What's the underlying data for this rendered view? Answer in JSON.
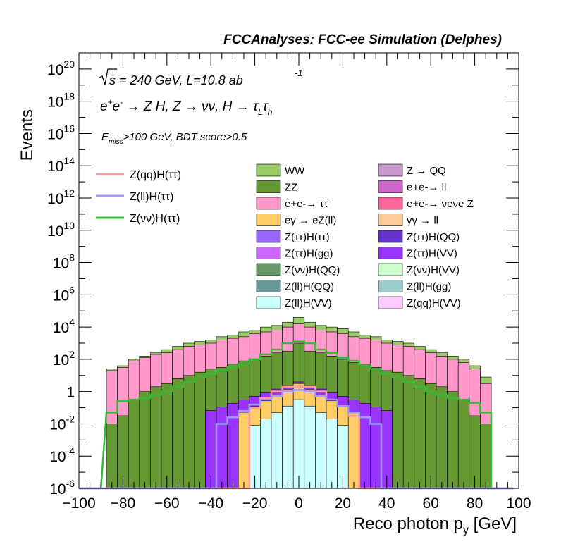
{
  "chart_data": {
    "type": "histogram-stacked",
    "title": "FCCAnalyses: FCC-ee Simulation (Delphes)",
    "xlabel": "Reco photon p_{y} [GeV]",
    "ylabel": "Events",
    "xlim": [
      -100,
      100
    ],
    "ylim": [
      1e-06,
      1e+21
    ],
    "yscale": "log",
    "annotations": {
      "energy": "√s = 240 GeV, L=10.8 ab",
      "energy_sup": "-1",
      "process": "e+e- → Z H, Z → νν, H → τLτh",
      "cuts": "E_miss>100 GeV, BDT score>0.5"
    },
    "xticks": [
      "−100",
      "−80",
      "−60",
      "−40",
      "−20",
      "0",
      "20",
      "40",
      "60",
      "80",
      "100"
    ],
    "yticks": [
      "10^-6",
      "10^-4",
      "10^-2",
      "1",
      "10^2",
      "10^4",
      "10^6",
      "10^8",
      "10^10",
      "10^12",
      "10^14",
      "10^16",
      "10^18",
      "10^20"
    ],
    "signal_legend": [
      {
        "name": "Z(qq)H(ττ)",
        "color": "#ff9999"
      },
      {
        "name": "Z(ll)H(ττ)",
        "color": "#9999ff"
      },
      {
        "name": "Z(νν)H(ττ)",
        "color": "#33bb33"
      }
    ],
    "bkg_legend": [
      {
        "name": "WW",
        "color": "#99cc66"
      },
      {
        "name": "Z → QQ",
        "color": "#cc99cc"
      },
      {
        "name": "ZZ",
        "color": "#669933"
      },
      {
        "name": "e+e-→ ll",
        "color": "#cc66cc"
      },
      {
        "name": "e+e-→ ττ",
        "color": "#ff99cc"
      },
      {
        "name": "e+e-→ νeνe Z",
        "color": "#ff6699"
      },
      {
        "name": "eγ → eZ(ll)",
        "color": "#ffcc66"
      },
      {
        "name": "γγ → ll",
        "color": "#ffcc99"
      },
      {
        "name": "Z(ττ)H(ττ)",
        "color": "#9966ff"
      },
      {
        "name": "Z(ττ)H(QQ)",
        "color": "#6633cc"
      },
      {
        "name": "Z(ττ)H(gg)",
        "color": "#cc66ff"
      },
      {
        "name": "Z(ττ)H(VV)",
        "color": "#9933ff"
      },
      {
        "name": "Z(νν)H(QQ)",
        "color": "#669966"
      },
      {
        "name": "Z(νν)H(VV)",
        "color": "#ccffcc"
      },
      {
        "name": "Z(ll)H(QQ)",
        "color": "#669999"
      },
      {
        "name": "Z(ll)H(gg)",
        "color": "#99cccc"
      },
      {
        "name": "Z(ll)H(VV)",
        "color": "#ccffff"
      },
      {
        "name": "Z(qq)H(VV)",
        "color": "#ffccff"
      }
    ],
    "bins": [
      -95,
      -85,
      -80,
      -75,
      -70,
      -65,
      -60,
      -55,
      -50,
      -45,
      -40,
      -35,
      -30,
      -25,
      -20,
      -15,
      -10,
      -5,
      0,
      5,
      10,
      15,
      20,
      25,
      30,
      35,
      40,
      45,
      50,
      55,
      60,
      65,
      70,
      75,
      80,
      85,
      90,
      95
    ],
    "stack_tops_log10": {
      "total": [
        -6,
        1.4,
        1.6,
        2.0,
        2.2,
        2.4,
        2.6,
        2.8,
        3.0,
        3.1,
        3.2,
        3.4,
        3.5,
        3.7,
        3.8,
        4.0,
        4.1,
        4.3,
        4.6,
        4.3,
        4.1,
        4.0,
        3.9,
        3.7,
        3.5,
        3.4,
        3.2,
        3.1,
        3.0,
        2.8,
        2.6,
        2.4,
        2.2,
        2.0,
        1.6,
        0.9,
        -6,
        -6
      ],
      "ll_ee_tautau_base": [
        -6,
        1.3,
        1.5,
        1.9,
        2.1,
        2.3,
        2.4,
        2.6,
        2.8,
        2.9,
        3.0,
        3.2,
        3.3,
        3.4,
        3.6,
        3.7,
        3.8,
        4.0,
        4.2,
        4.0,
        3.8,
        3.7,
        3.6,
        3.4,
        3.3,
        3.2,
        3.0,
        2.9,
        2.8,
        2.6,
        2.4,
        2.2,
        2.0,
        1.8,
        1.4,
        0.5,
        -6,
        -6
      ],
      "zz": [
        -6,
        -2,
        -1.5,
        -0.5,
        0,
        0.3,
        0.5,
        0.8,
        1.0,
        1.2,
        1.4,
        1.5,
        1.7,
        1.9,
        2.0,
        2.2,
        2.4,
        2.5,
        3.0,
        2.5,
        2.4,
        2.2,
        2.0,
        1.8,
        1.7,
        1.5,
        1.3,
        1.2,
        1.0,
        0.8,
        0.5,
        0.3,
        0,
        -0.5,
        -1.5,
        -2,
        -6,
        -6
      ]
    },
    "signal_vv_log10": [
      -6,
      -1.3,
      -0.6,
      -0.5,
      -0.4,
      -0.2,
      0.0,
      0.3,
      0.6,
      0.9,
      1.1,
      1.3,
      1.5,
      1.7,
      2.0,
      2.3,
      2.6,
      3.0,
      3.1,
      3.0,
      2.6,
      2.4,
      2.1,
      1.9,
      1.6,
      1.4,
      1.1,
      0.9,
      0.6,
      0.3,
      0.0,
      -0.2,
      -0.4,
      -0.5,
      -0.7,
      -1.3,
      -6,
      -6
    ],
    "signal_qq_log10": [
      -6,
      -6,
      -6,
      -6,
      -6,
      -6,
      -6,
      -6,
      -6,
      -6,
      -6,
      -6,
      -6,
      -6,
      -1.0,
      -0.4,
      0.0,
      0.3,
      0.3,
      0.3,
      0.0,
      -0.5,
      -0.9,
      -1.5,
      -6,
      -6,
      -6,
      -6,
      -6,
      -6,
      -6,
      -6,
      -6,
      -6,
      -6,
      -6,
      -6,
      -6
    ],
    "signal_ll_log10": [
      -6,
      -6,
      -6,
      -6,
      -6,
      -6,
      -6,
      -6,
      -6,
      -6,
      -6,
      -2.0,
      -1.6,
      -1.2,
      -0.8,
      -0.5,
      -0.3,
      0.0,
      0.1,
      0.0,
      -0.3,
      -0.5,
      -0.9,
      -1.3,
      -1.6,
      -2.0,
      -6,
      -6,
      -6,
      -6,
      -6,
      -6,
      -6,
      -6,
      -6,
      -6,
      -6,
      -6
    ]
  }
}
